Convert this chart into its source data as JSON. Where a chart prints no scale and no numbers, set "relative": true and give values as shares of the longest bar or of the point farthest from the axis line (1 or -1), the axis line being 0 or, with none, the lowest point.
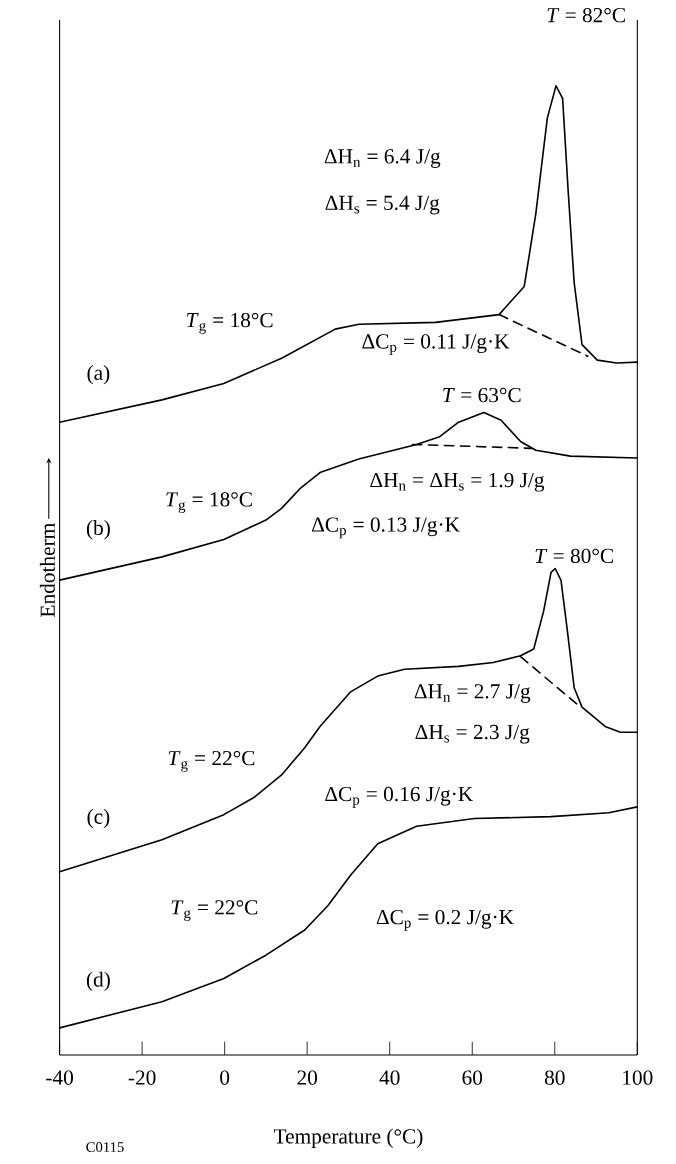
{
  "chart_data": {
    "type": "line",
    "xlabel": "Temperature (°C)",
    "ylabel": "Endotherm",
    "relative": true,
    "xlim": [
      -40,
      100
    ],
    "xticks": [
      -40,
      -20,
      0,
      20,
      40,
      60,
      80,
      100
    ],
    "line_style": "solid",
    "series": [
      {
        "name": "(a)",
        "color": "#000000",
        "x": [
          -40,
          -15.2,
          -0.2,
          13.8,
          26.8,
          32.5,
          51.1,
          66.5,
          72.6,
          75.4,
          78.2,
          80.3,
          81.9,
          83.3,
          84.7,
          86.6,
          90.3,
          95,
          100
        ],
        "values": [
          0.653,
          0.676,
          0.693,
          0.719,
          0.749,
          0.754,
          0.756,
          0.764,
          0.793,
          0.868,
          0.967,
          1.0,
          0.987,
          0.888,
          0.797,
          0.733,
          0.717,
          0.714,
          0.715
        ]
      },
      {
        "color": "#000000",
        "line_style": "dashed",
        "x": [
          66.5,
          88
        ],
        "values": [
          0.764,
          0.721
        ]
      },
      {
        "name": "(b)",
        "color": "#000000",
        "x": [
          -40,
          -15.2,
          -0.2,
          10,
          13.8,
          18.4,
          23.1,
          32.5,
          46.5,
          52.1,
          56.7,
          62.8,
          67,
          71.7,
          75.4,
          83.8,
          100
        ],
        "values": [
          0.49,
          0.514,
          0.532,
          0.552,
          0.564,
          0.585,
          0.601,
          0.615,
          0.63,
          0.638,
          0.653,
          0.663,
          0.655,
          0.633,
          0.624,
          0.618,
          0.616
        ]
      },
      {
        "color": "#000000",
        "line_style": "dashed",
        "x": [
          45.5,
          74.5
        ],
        "values": [
          0.63,
          0.626
        ]
      },
      {
        "name": "(c)",
        "color": "#000000",
        "x": [
          -40,
          -15.2,
          -0.2,
          7.2,
          13.8,
          19.4,
          23.1,
          30.6,
          37.1,
          43.6,
          56.7,
          65.1,
          71.7,
          74.9,
          77.3,
          79.1,
          80.1,
          81.5,
          82.9,
          84.7,
          86.6,
          92.2,
          95.9,
          100
        ],
        "values": [
          0.189,
          0.222,
          0.248,
          0.266,
          0.289,
          0.317,
          0.339,
          0.375,
          0.391,
          0.398,
          0.401,
          0.405,
          0.412,
          0.419,
          0.458,
          0.498,
          0.502,
          0.49,
          0.443,
          0.379,
          0.359,
          0.339,
          0.333,
          0.333
        ]
      },
      {
        "color": "#000000",
        "line_style": "dashed",
        "x": [
          71.7,
          85.7
        ],
        "values": [
          0.411,
          0.361
        ]
      },
      {
        "name": "(d)",
        "color": "#000000",
        "x": [
          -40,
          -15.2,
          -0.2,
          10,
          19.4,
          25,
          30.6,
          37.1,
          46.5,
          60.5,
          79.1,
          93.1,
          100
        ],
        "values": [
          0.028,
          0.055,
          0.079,
          0.103,
          0.129,
          0.154,
          0.186,
          0.218,
          0.236,
          0.244,
          0.246,
          0.25,
          0.256
        ]
      }
    ],
    "annotations": [
      "*T* = 82°C",
      "ΔH$_{n}$ = 6.4 J/g",
      "ΔH$_{s}$ = 5.4 J/g",
      "*T*$_{g}$ = 18°C",
      "ΔC$_{p}$ = 0.11 J/g·K",
      "*T* = 63°C",
      "ΔH$_{n}$ = ΔH$_{s}$ = 1.9 J/g",
      "*T*$_{g}$ = 18°C",
      "ΔC$_{p}$ = 0.13 J/g·K",
      "*T* = 80°C",
      "ΔH$_{n}$ = 2.7 J/g",
      "ΔH$_{s}$ = 2.3 J/g",
      "*T*$_{g}$ = 22°C",
      "ΔC$_{p}$ = 0.16 J/g·K",
      "*T*$_{g}$ = 22°C",
      "ΔC$_{p}$ = 0.2 J/g·K",
      "C0115"
    ]
  }
}
